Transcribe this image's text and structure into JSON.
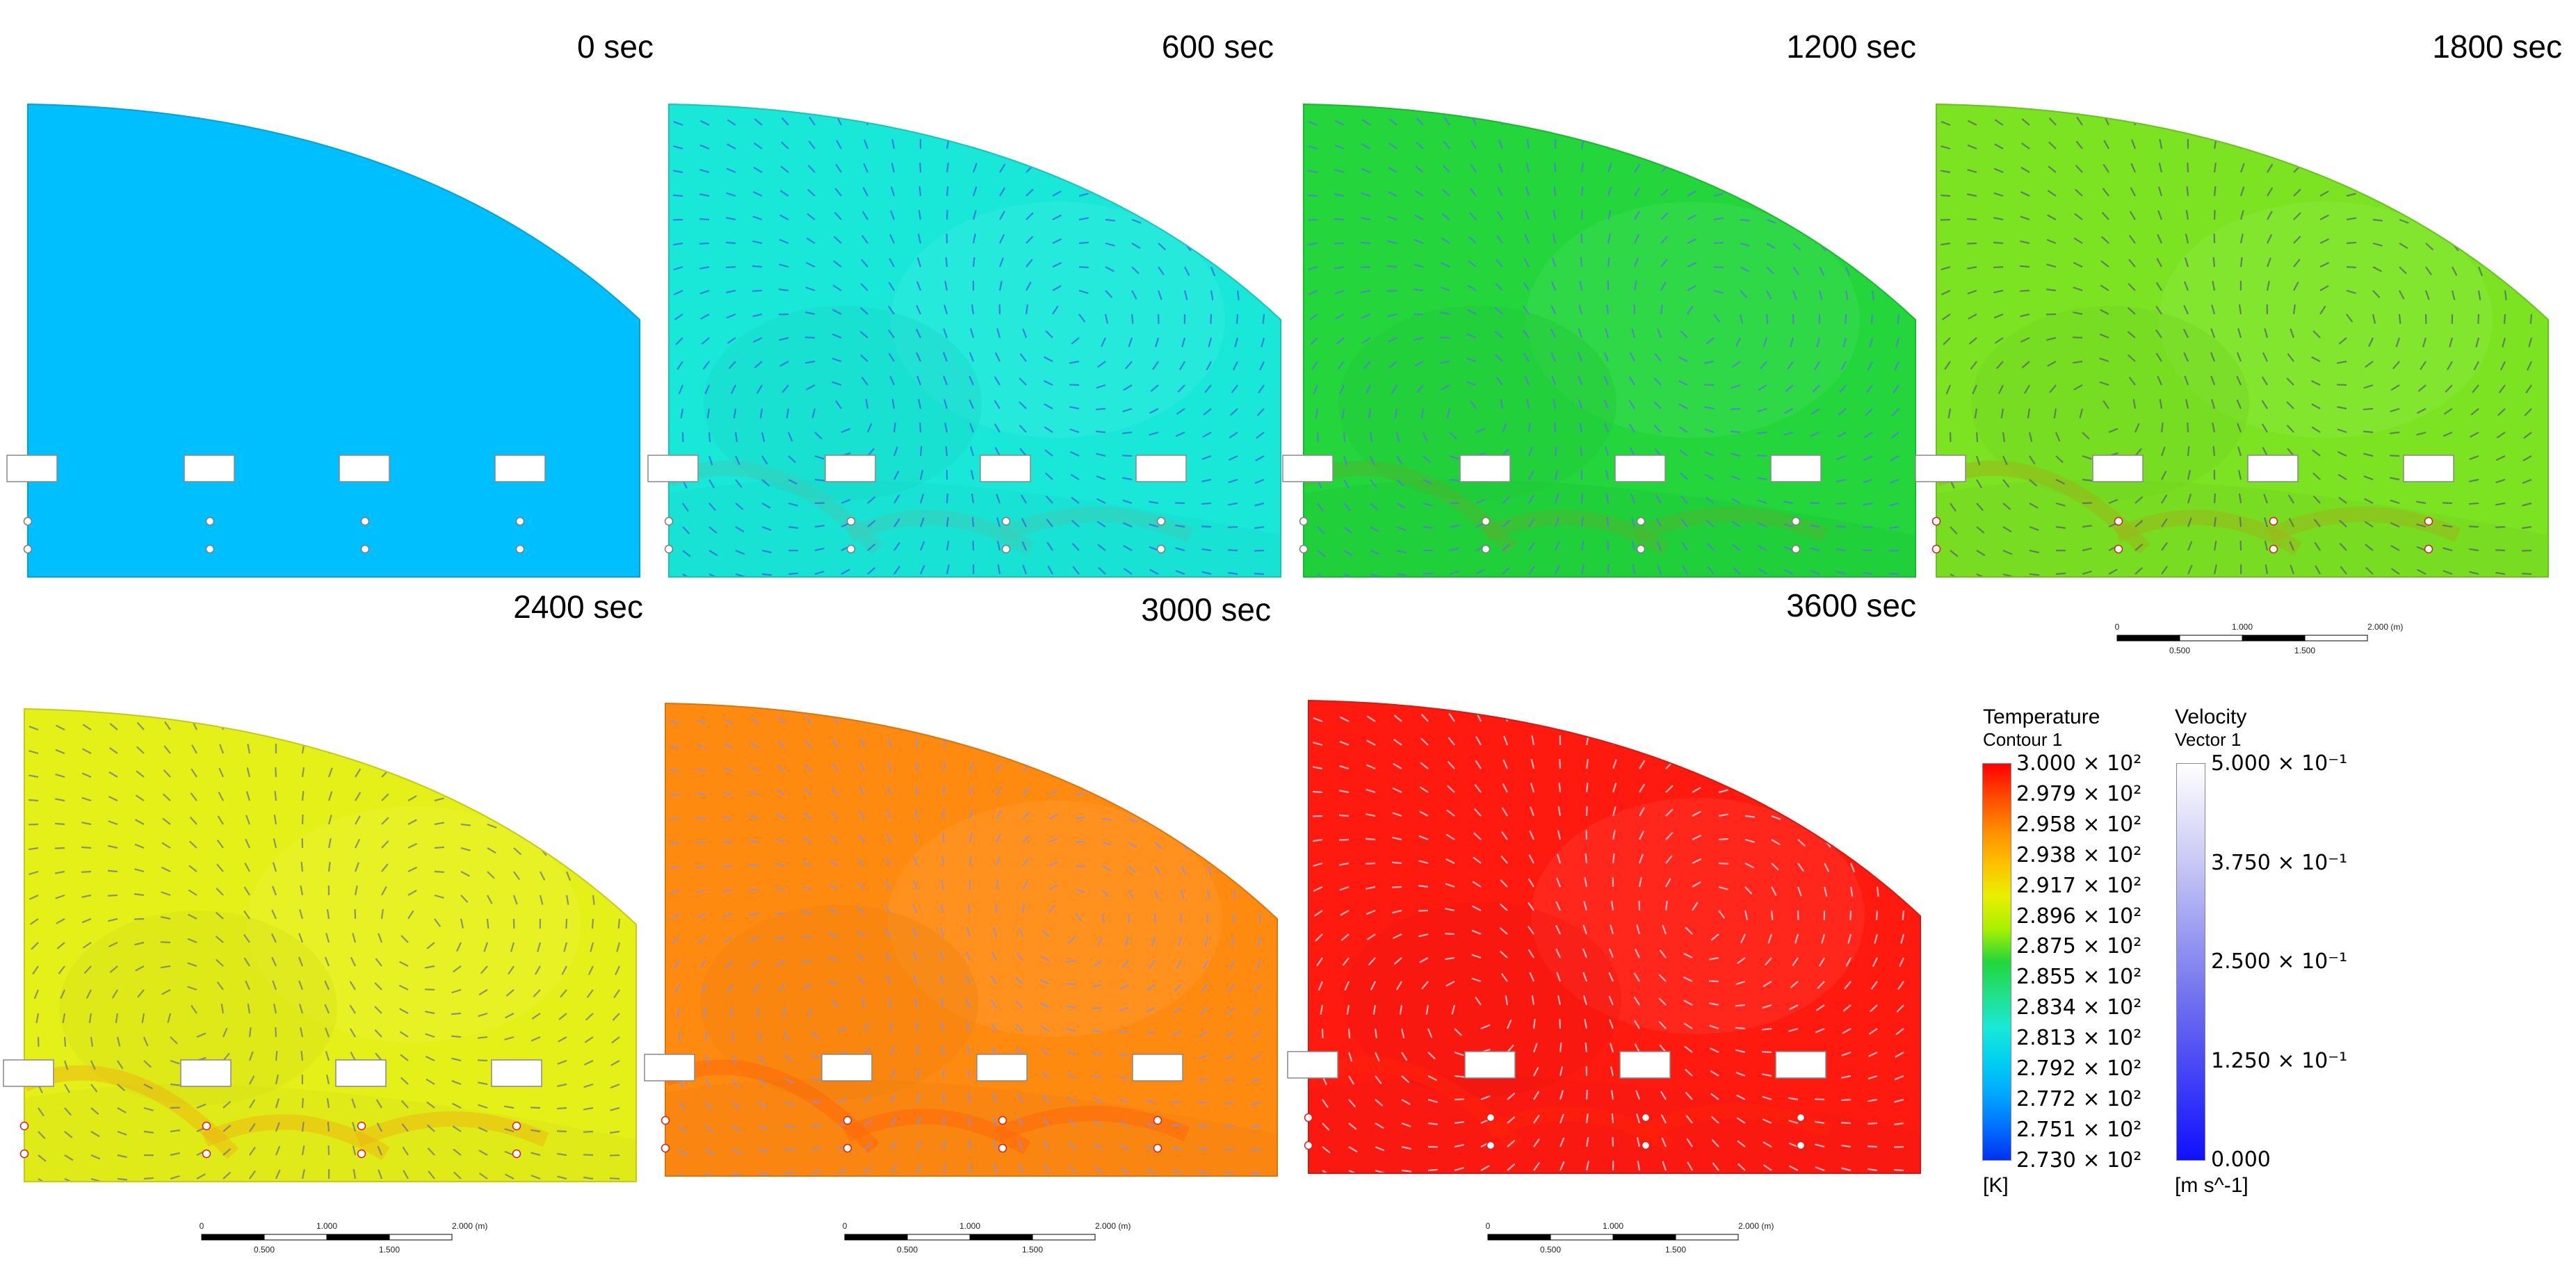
{
  "panels": [
    {
      "time": "0 sec",
      "fill": "#00BFFF",
      "show_vectors": false,
      "vector_color": "#3a5fe0",
      "hot_level": 0.0
    },
    {
      "time": "600 sec",
      "fill": "#19E8D8",
      "show_vectors": true,
      "vector_color": "#3a5fe0",
      "hot_level": 0.15
    },
    {
      "time": "1200 sec",
      "fill": "#22D63C",
      "show_vectors": true,
      "vector_color": "#5a74e0",
      "hot_level": 0.3
    },
    {
      "time": "1800 sec",
      "fill": "#7BE322",
      "show_vectors": true,
      "vector_color": "#556070",
      "hot_level": 0.45
    },
    {
      "time": "2400 sec",
      "fill": "#E5F018",
      "show_vectors": true,
      "vector_color": "#6a7585",
      "hot_level": 0.6
    },
    {
      "time": "3000 sec",
      "fill": "#FF8A10",
      "show_vectors": true,
      "vector_color": "#8d8fe8",
      "hot_level": 0.8
    },
    {
      "time": "3600 sec",
      "fill": "#FF1A10",
      "show_vectors": true,
      "vector_color": "#e8e6f4",
      "hot_level": 1.0
    }
  ],
  "scale_bar": {
    "top_labels": [
      "0",
      "1.000",
      "2.000 (m)"
    ],
    "bottom_labels": [
      "0.500",
      "1.500"
    ]
  },
  "legend": {
    "temperature": {
      "title": "Temperature",
      "subtitle": "Contour 1",
      "units": "[K]",
      "ticks": [
        "3.000 × 10²",
        "2.979 × 10²",
        "2.958 × 10²",
        "2.938 × 10²",
        "2.917 × 10²",
        "2.896 × 10²",
        "2.875 × 10²",
        "2.855 × 10²",
        "2.834 × 10²",
        "2.813 × 10²",
        "2.792 × 10²",
        "2.772 × 10²",
        "2.751 × 10²",
        "2.730 × 10²"
      ],
      "colors": [
        "#FF0000",
        "#FF4A00",
        "#FF8C00",
        "#FFC000",
        "#E8F000",
        "#A8F000",
        "#22D63C",
        "#22E08A",
        "#19E8D8",
        "#00D0F0",
        "#00A8FF",
        "#0070FF",
        "#0030F0"
      ]
    },
    "velocity": {
      "title": "Velocity",
      "subtitle": "Vector 1",
      "units": "[m s^-1]",
      "ticks": [
        "5.000 × 10⁻¹",
        "3.750 × 10⁻¹",
        "2.500 × 10⁻¹",
        "1.250 × 10⁻¹",
        "0.000"
      ]
    }
  }
}
